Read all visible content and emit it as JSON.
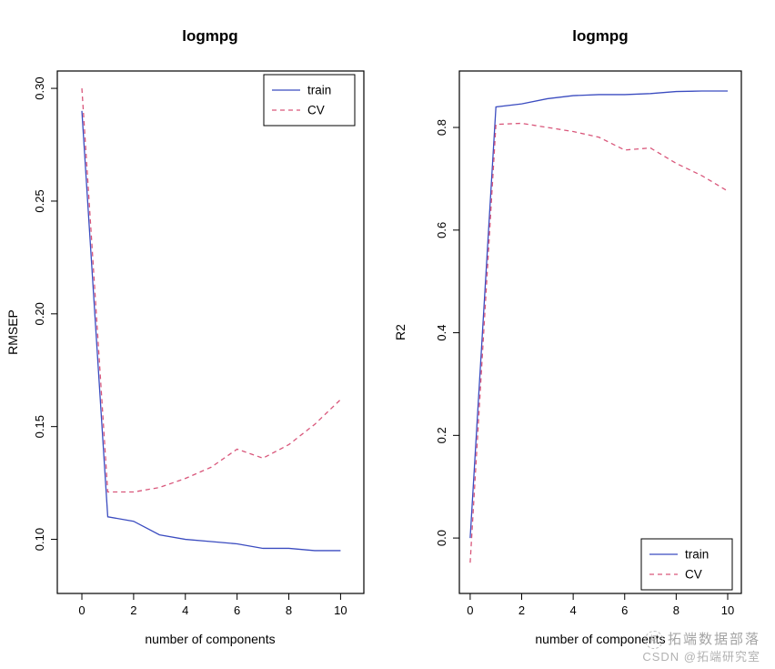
{
  "page": {
    "background": "#ffffff"
  },
  "chart_data": [
    {
      "type": "line",
      "title": "logmpg",
      "xlabel": "number of components",
      "ylabel": "RMSEP",
      "xlim": [
        -0.95,
        10.9
      ],
      "ylim": [
        0.076,
        0.3077
      ],
      "xticks": [
        0,
        2,
        4,
        6,
        8,
        10
      ],
      "yticks": [
        0.1,
        0.15,
        0.2,
        0.25,
        0.3
      ],
      "ytick_labels": [
        "0.10",
        "0.15",
        "0.20",
        "0.25",
        "0.30"
      ],
      "grid": false,
      "x": [
        0,
        1,
        2,
        3,
        4,
        5,
        6,
        7,
        8,
        9,
        10
      ],
      "series": [
        {
          "name": "train",
          "color": "#3b4cc0",
          "dash": "solid",
          "values": [
            0.29,
            0.11,
            0.108,
            0.102,
            0.1,
            0.099,
            0.098,
            0.096,
            0.096,
            0.095,
            0.095
          ]
        },
        {
          "name": "CV",
          "color": "#d9577b",
          "dash": "dashed",
          "values": [
            0.3,
            0.121,
            0.121,
            0.123,
            0.127,
            0.132,
            0.14,
            0.136,
            0.142,
            0.151,
            0.162
          ]
        }
      ],
      "legend": {
        "position": "topright",
        "entries": [
          "train",
          "CV"
        ]
      }
    },
    {
      "type": "line",
      "title": "logmpg",
      "xlabel": "number of components",
      "ylabel": "R2",
      "xlim": [
        -0.42,
        10.53
      ],
      "ylim": [
        -0.108,
        0.91
      ],
      "xticks": [
        0,
        2,
        4,
        6,
        8,
        10
      ],
      "yticks": [
        0.0,
        0.2,
        0.4,
        0.6,
        0.8
      ],
      "ytick_labels": [
        "0.0",
        "0.2",
        "0.4",
        "0.6",
        "0.8"
      ],
      "grid": false,
      "x": [
        0,
        1,
        2,
        3,
        4,
        5,
        6,
        7,
        8,
        9,
        10
      ],
      "series": [
        {
          "name": "train",
          "color": "#3b4cc0",
          "dash": "solid",
          "values": [
            0.0,
            0.84,
            0.846,
            0.856,
            0.862,
            0.864,
            0.864,
            0.866,
            0.87,
            0.871,
            0.871
          ]
        },
        {
          "name": "CV",
          "color": "#d9577b",
          "dash": "dashed",
          "values": [
            -0.048,
            0.806,
            0.808,
            0.8,
            0.792,
            0.781,
            0.756,
            0.76,
            0.73,
            0.706,
            0.676
          ]
        }
      ],
      "legend": {
        "position": "bottomright",
        "entries": [
          "train",
          "CV"
        ]
      }
    }
  ],
  "watermark": {
    "brand": "拓端数据部落",
    "credit": "CSDN @拓端研究室",
    "logo": "circle-badge-icon"
  }
}
